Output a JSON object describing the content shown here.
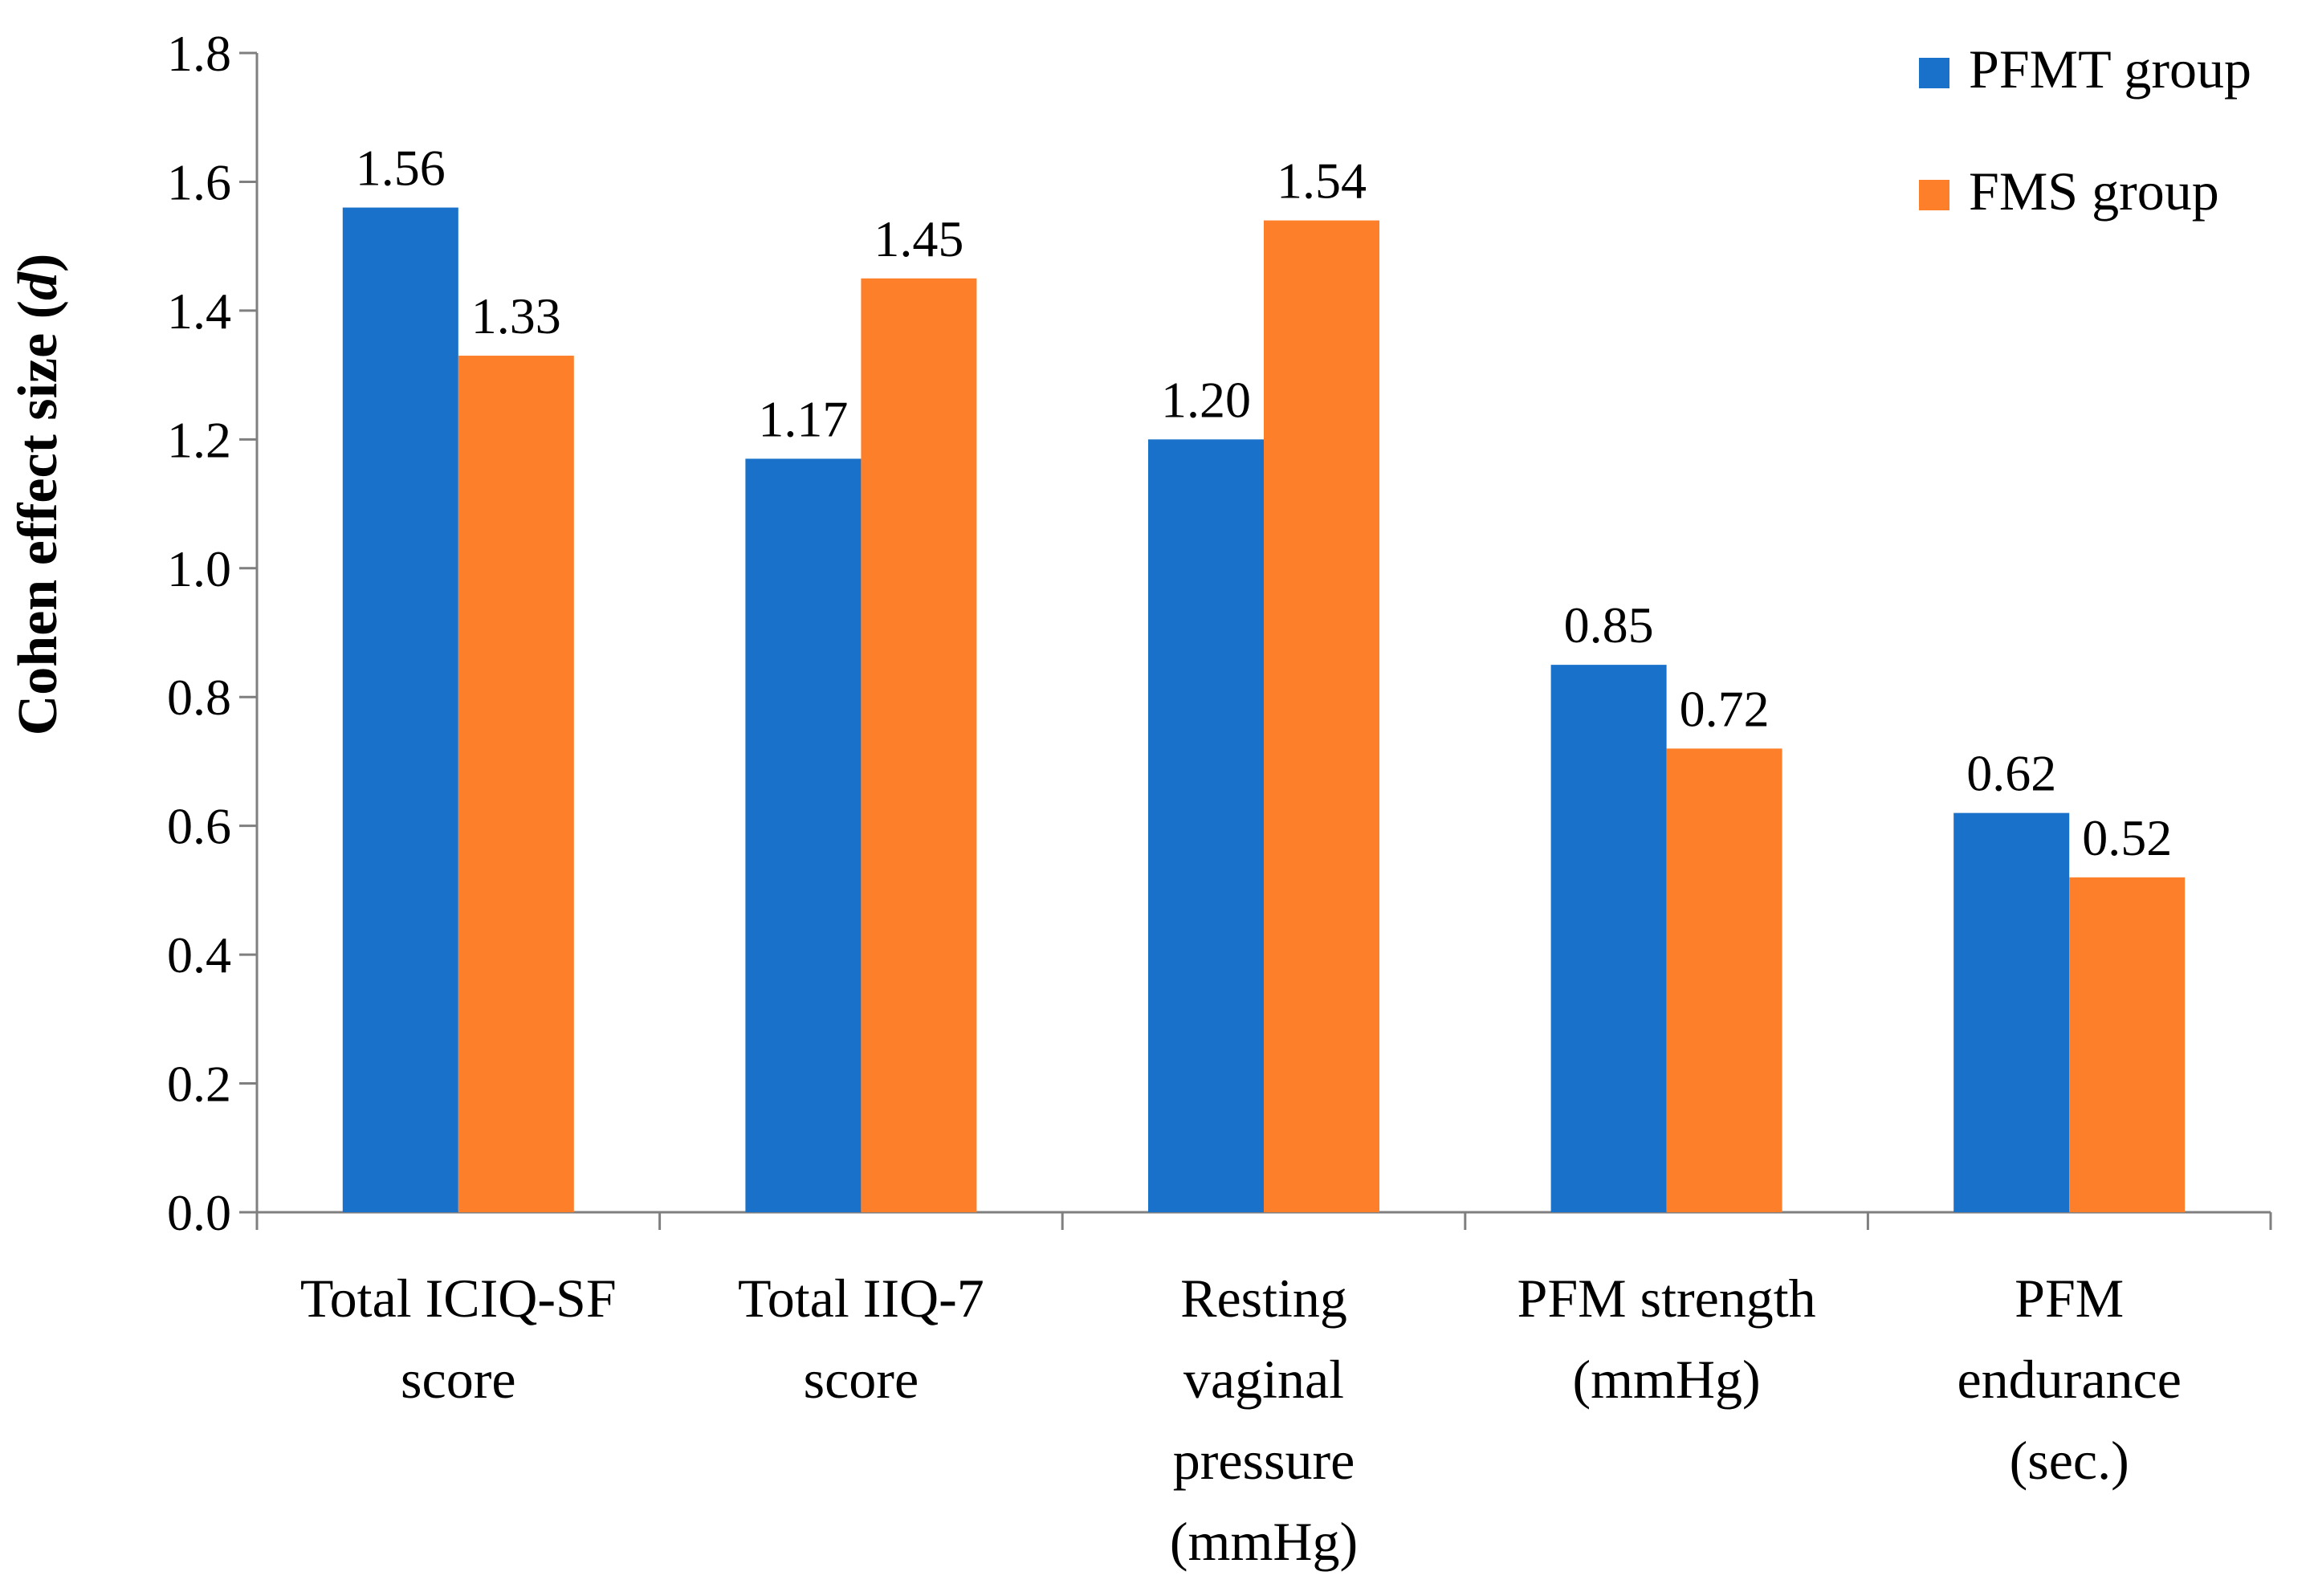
{
  "chart_data": {
    "type": "bar",
    "title": "",
    "xlabel": "",
    "ylabel": "Cohen effect size",
    "ylabel_italic_suffix": "d",
    "ylim": [
      0,
      1.8
    ],
    "yticks": [
      "0.0",
      "0.2",
      "0.4",
      "0.6",
      "0.8",
      "1.0",
      "1.2",
      "1.4",
      "1.6",
      "1.8"
    ],
    "grid": false,
    "legend_position": "top-right",
    "categories": [
      [
        "Total ICIQ-SF",
        "score"
      ],
      [
        "Total IIQ-7",
        "score"
      ],
      [
        "Resting",
        "vaginal",
        "pressure",
        "(mmHg)"
      ],
      [
        "PFM strength",
        "(mmHg)"
      ],
      [
        "PFM",
        "endurance",
        "(sec.)"
      ]
    ],
    "series": [
      {
        "name": "PFMT group",
        "color": "#1971c9",
        "values": [
          1.56,
          1.17,
          1.2,
          0.85,
          0.62
        ],
        "labels": [
          "1.56",
          "1.17",
          "1.20",
          "0.85",
          "0.62"
        ]
      },
      {
        "name": "FMS group",
        "color": "#fe7f2a",
        "values": [
          1.33,
          1.45,
          1.54,
          0.72,
          0.52
        ],
        "labels": [
          "1.33",
          "1.45",
          "1.54",
          "0.72",
          "0.52"
        ]
      }
    ]
  }
}
